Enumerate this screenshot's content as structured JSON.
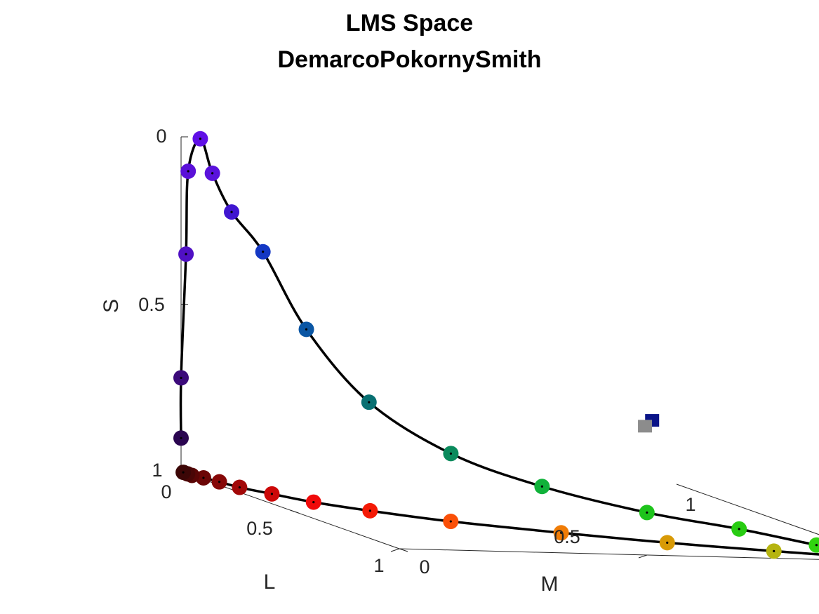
{
  "chart_data": {
    "type": "scatter",
    "projection": "3d",
    "title": "LMS Space",
    "subtitle": "DemarcoPokornySmith",
    "xlabel": "L",
    "ylabel": "M",
    "zlabel": "S",
    "xlim": [
      0,
      1
    ],
    "ylim": [
      0,
      1
    ],
    "zlim": [
      0,
      1
    ],
    "x_ticks": [
      "0",
      "0.5",
      "1"
    ],
    "y_ticks": [
      "0",
      "0.5",
      "1"
    ],
    "z_ticks": [
      "0",
      "0.5",
      "1"
    ],
    "grid": false,
    "legend": "none",
    "curve_color": "#000000",
    "series": [
      {
        "kind": "spectral-locus-points",
        "points": [
          {
            "L": 0.0,
            "M": 0.0,
            "S": 0.1,
            "color": "#2a0550"
          },
          {
            "L": 0.0,
            "M": 0.0,
            "S": 0.28,
            "color": "#3b0a7a"
          },
          {
            "L": 0.0,
            "M": 0.01,
            "S": 0.65,
            "color": "#5010c4"
          },
          {
            "L": 0.01,
            "M": 0.01,
            "S": 0.9,
            "color": "#5a10d8"
          },
          {
            "L": 0.02,
            "M": 0.03,
            "S": 1.0,
            "color": "#6010e6"
          },
          {
            "L": 0.03,
            "M": 0.05,
            "S": 0.9,
            "color": "#5a12dc"
          },
          {
            "L": 0.05,
            "M": 0.08,
            "S": 0.79,
            "color": "#4016d0"
          },
          {
            "L": 0.08,
            "M": 0.13,
            "S": 0.68,
            "color": "#1438c4"
          },
          {
            "L": 0.12,
            "M": 0.2,
            "S": 0.46,
            "color": "#0a56a4"
          },
          {
            "L": 0.18,
            "M": 0.3,
            "S": 0.26,
            "color": "#087072"
          },
          {
            "L": 0.26,
            "M": 0.43,
            "S": 0.13,
            "color": "#0a8a5c"
          },
          {
            "L": 0.36,
            "M": 0.57,
            "S": 0.06,
            "color": "#10b23a"
          },
          {
            "L": 0.5,
            "M": 0.72,
            "S": 0.02,
            "color": "#1ec41c"
          },
          {
            "L": 0.65,
            "M": 0.84,
            "S": 0.01,
            "color": "#28cc12"
          },
          {
            "L": 0.8,
            "M": 0.93,
            "S": 0.0,
            "color": "#30d410"
          },
          {
            "L": 0.92,
            "M": 0.99,
            "S": 0.0,
            "color": "#3ad812"
          },
          {
            "L": 0.96,
            "M": 0.98,
            "S": 0.0,
            "color": "#78c41e"
          },
          {
            "L": 0.9,
            "M": 0.8,
            "S": 0.0,
            "color": "#b6b410"
          },
          {
            "L": 0.82,
            "M": 0.62,
            "S": 0.0,
            "color": "#d89a06"
          },
          {
            "L": 0.72,
            "M": 0.45,
            "S": 0.0,
            "color": "#f07c06"
          },
          {
            "L": 0.6,
            "M": 0.28,
            "S": 0.0,
            "color": "#fa5008"
          },
          {
            "L": 0.48,
            "M": 0.17,
            "S": 0.0,
            "color": "#f41a06"
          },
          {
            "L": 0.38,
            "M": 0.1,
            "S": 0.0,
            "color": "#f00a0a"
          },
          {
            "L": 0.28,
            "M": 0.06,
            "S": 0.0,
            "color": "#cc0808"
          },
          {
            "L": 0.2,
            "M": 0.03,
            "S": 0.0,
            "color": "#a20808"
          },
          {
            "L": 0.13,
            "M": 0.02,
            "S": 0.0,
            "color": "#860808"
          },
          {
            "L": 0.08,
            "M": 0.01,
            "S": 0.0,
            "color": "#6c0606"
          },
          {
            "L": 0.05,
            "M": 0.0,
            "S": 0.0,
            "color": "#5a0606"
          },
          {
            "L": 0.03,
            "M": 0.0,
            "S": 0.0,
            "color": "#4a0606"
          },
          {
            "L": 0.01,
            "M": 0.0,
            "S": 0.0,
            "color": "#3c0606"
          }
        ]
      },
      {
        "kind": "reference-points",
        "marker": "square",
        "points": [
          {
            "L": 0.66,
            "M": 0.66,
            "S": 0.33,
            "color": "#0a1488"
          },
          {
            "L": 0.65,
            "M": 0.65,
            "S": 0.31,
            "color": "#8c8c8c"
          }
        ]
      }
    ]
  }
}
